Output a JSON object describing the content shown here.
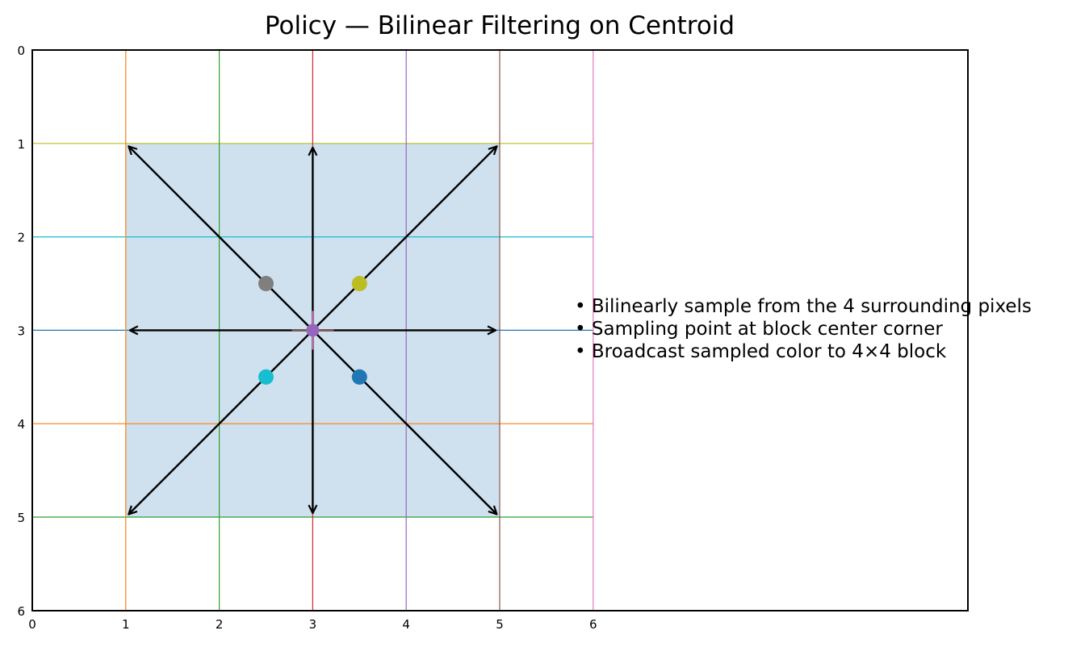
{
  "title": "Policy — Bilinear Filtering on Centroid",
  "bullets": [
    "• Bilinearly sample from the 4 surrounding pixels",
    "• Sampling point at block center corner",
    "• Broadcast sampled color to 4×4 block"
  ],
  "chart_data": {
    "type": "diagram",
    "xlim": [
      0,
      6
    ],
    "ylim": [
      6,
      0
    ],
    "x_ticks": [
      "0",
      "1",
      "2",
      "3",
      "4",
      "5",
      "6"
    ],
    "y_ticks": [
      "0",
      "1",
      "2",
      "3",
      "4",
      "5",
      "6"
    ],
    "grid_lines": {
      "vertical": [
        {
          "x": 1,
          "color": "#ff7f0e"
        },
        {
          "x": 2,
          "color": "#2ca02c"
        },
        {
          "x": 3,
          "color": "#d62728"
        },
        {
          "x": 4,
          "color": "#9467bd"
        },
        {
          "x": 5,
          "color": "#8c564b"
        },
        {
          "x": 6,
          "color": "#e377c2"
        }
      ],
      "horizontal": [
        {
          "y": 1,
          "color": "#bcbd22"
        },
        {
          "y": 2,
          "color": "#17becf"
        },
        {
          "y": 3,
          "color": "#1f77b4"
        },
        {
          "y": 4,
          "color": "#ff7f0e"
        },
        {
          "y": 5,
          "color": "#2ca02c"
        }
      ]
    },
    "block": {
      "x0": 1,
      "y0": 1,
      "x1": 5,
      "y1": 5,
      "color": "#cfe0ee"
    },
    "centroid": {
      "x": 3,
      "y": 3,
      "color": "#9467bd"
    },
    "arrows_to": [
      {
        "x": 1,
        "y": 1
      },
      {
        "x": 3,
        "y": 1
      },
      {
        "x": 5,
        "y": 1
      },
      {
        "x": 1,
        "y": 3
      },
      {
        "x": 5,
        "y": 3
      },
      {
        "x": 1,
        "y": 5
      },
      {
        "x": 3,
        "y": 5
      },
      {
        "x": 5,
        "y": 5
      }
    ],
    "sample_points": [
      {
        "x": 2.5,
        "y": 2.5,
        "color": "#7f7f7f"
      },
      {
        "x": 3.5,
        "y": 2.5,
        "color": "#bcbd22"
      },
      {
        "x": 2.5,
        "y": 3.5,
        "color": "#17becf"
      },
      {
        "x": 3.5,
        "y": 3.5,
        "color": "#1f77b4"
      }
    ]
  }
}
